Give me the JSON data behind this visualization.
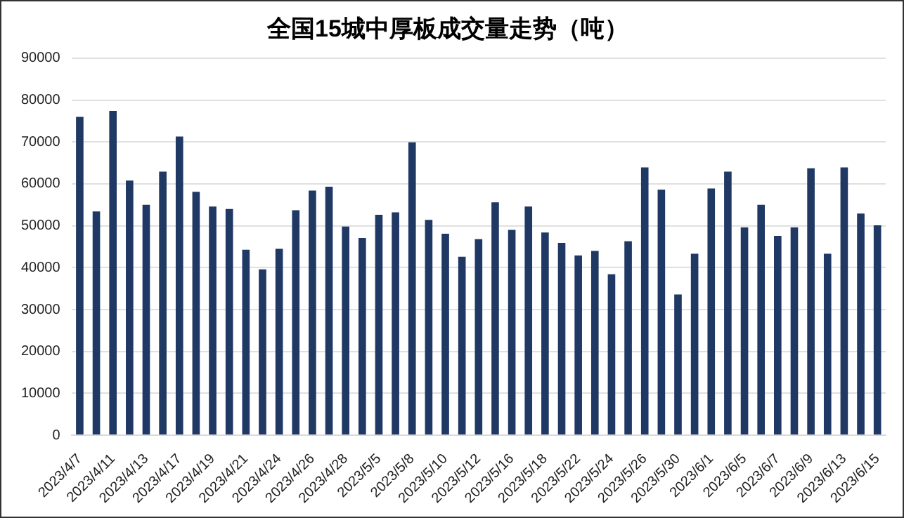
{
  "chart_data": {
    "type": "bar",
    "title": "全国15城中厚板成交量走势（吨）",
    "categories": [
      "2023/4/7",
      null,
      "2023/4/11",
      null,
      "2023/4/13",
      null,
      "2023/4/17",
      null,
      "2023/4/19",
      null,
      "2023/4/21",
      null,
      "2023/4/24",
      null,
      "2023/4/26",
      null,
      "2023/4/28",
      null,
      "2023/5/5",
      null,
      "2023/5/8",
      null,
      "2023/5/10",
      null,
      "2023/5/12",
      null,
      "2023/5/16",
      null,
      "2023/5/18",
      null,
      "2023/5/22",
      null,
      "2023/5/24",
      null,
      "2023/5/26",
      null,
      "2023/5/30",
      null,
      "2023/6/1",
      null,
      "2023/6/5",
      null,
      "2023/6/7",
      null,
      "2023/6/9",
      null,
      "2023/6/13",
      null,
      "2023/6/15"
    ],
    "values": [
      76000,
      53400,
      77400,
      60800,
      55000,
      62900,
      71300,
      58100,
      54600,
      54000,
      44300,
      39600,
      44500,
      53700,
      58400,
      59300,
      49800,
      47100,
      52600,
      53200,
      69900,
      51400,
      48100,
      42600,
      46800,
      55600,
      49000,
      54600,
      48400,
      45900,
      42900,
      44000,
      38400,
      46300,
      63900,
      58600,
      33600,
      43300,
      58900,
      62900,
      49600,
      55000,
      47600,
      49600,
      63700,
      43300,
      63900,
      52900,
      50100
    ],
    "color": "#1f3864",
    "ylim": [
      0,
      90000
    ],
    "yticks": [
      0,
      10000,
      20000,
      30000,
      40000,
      50000,
      60000,
      70000,
      80000,
      90000
    ],
    "grid": "y"
  }
}
